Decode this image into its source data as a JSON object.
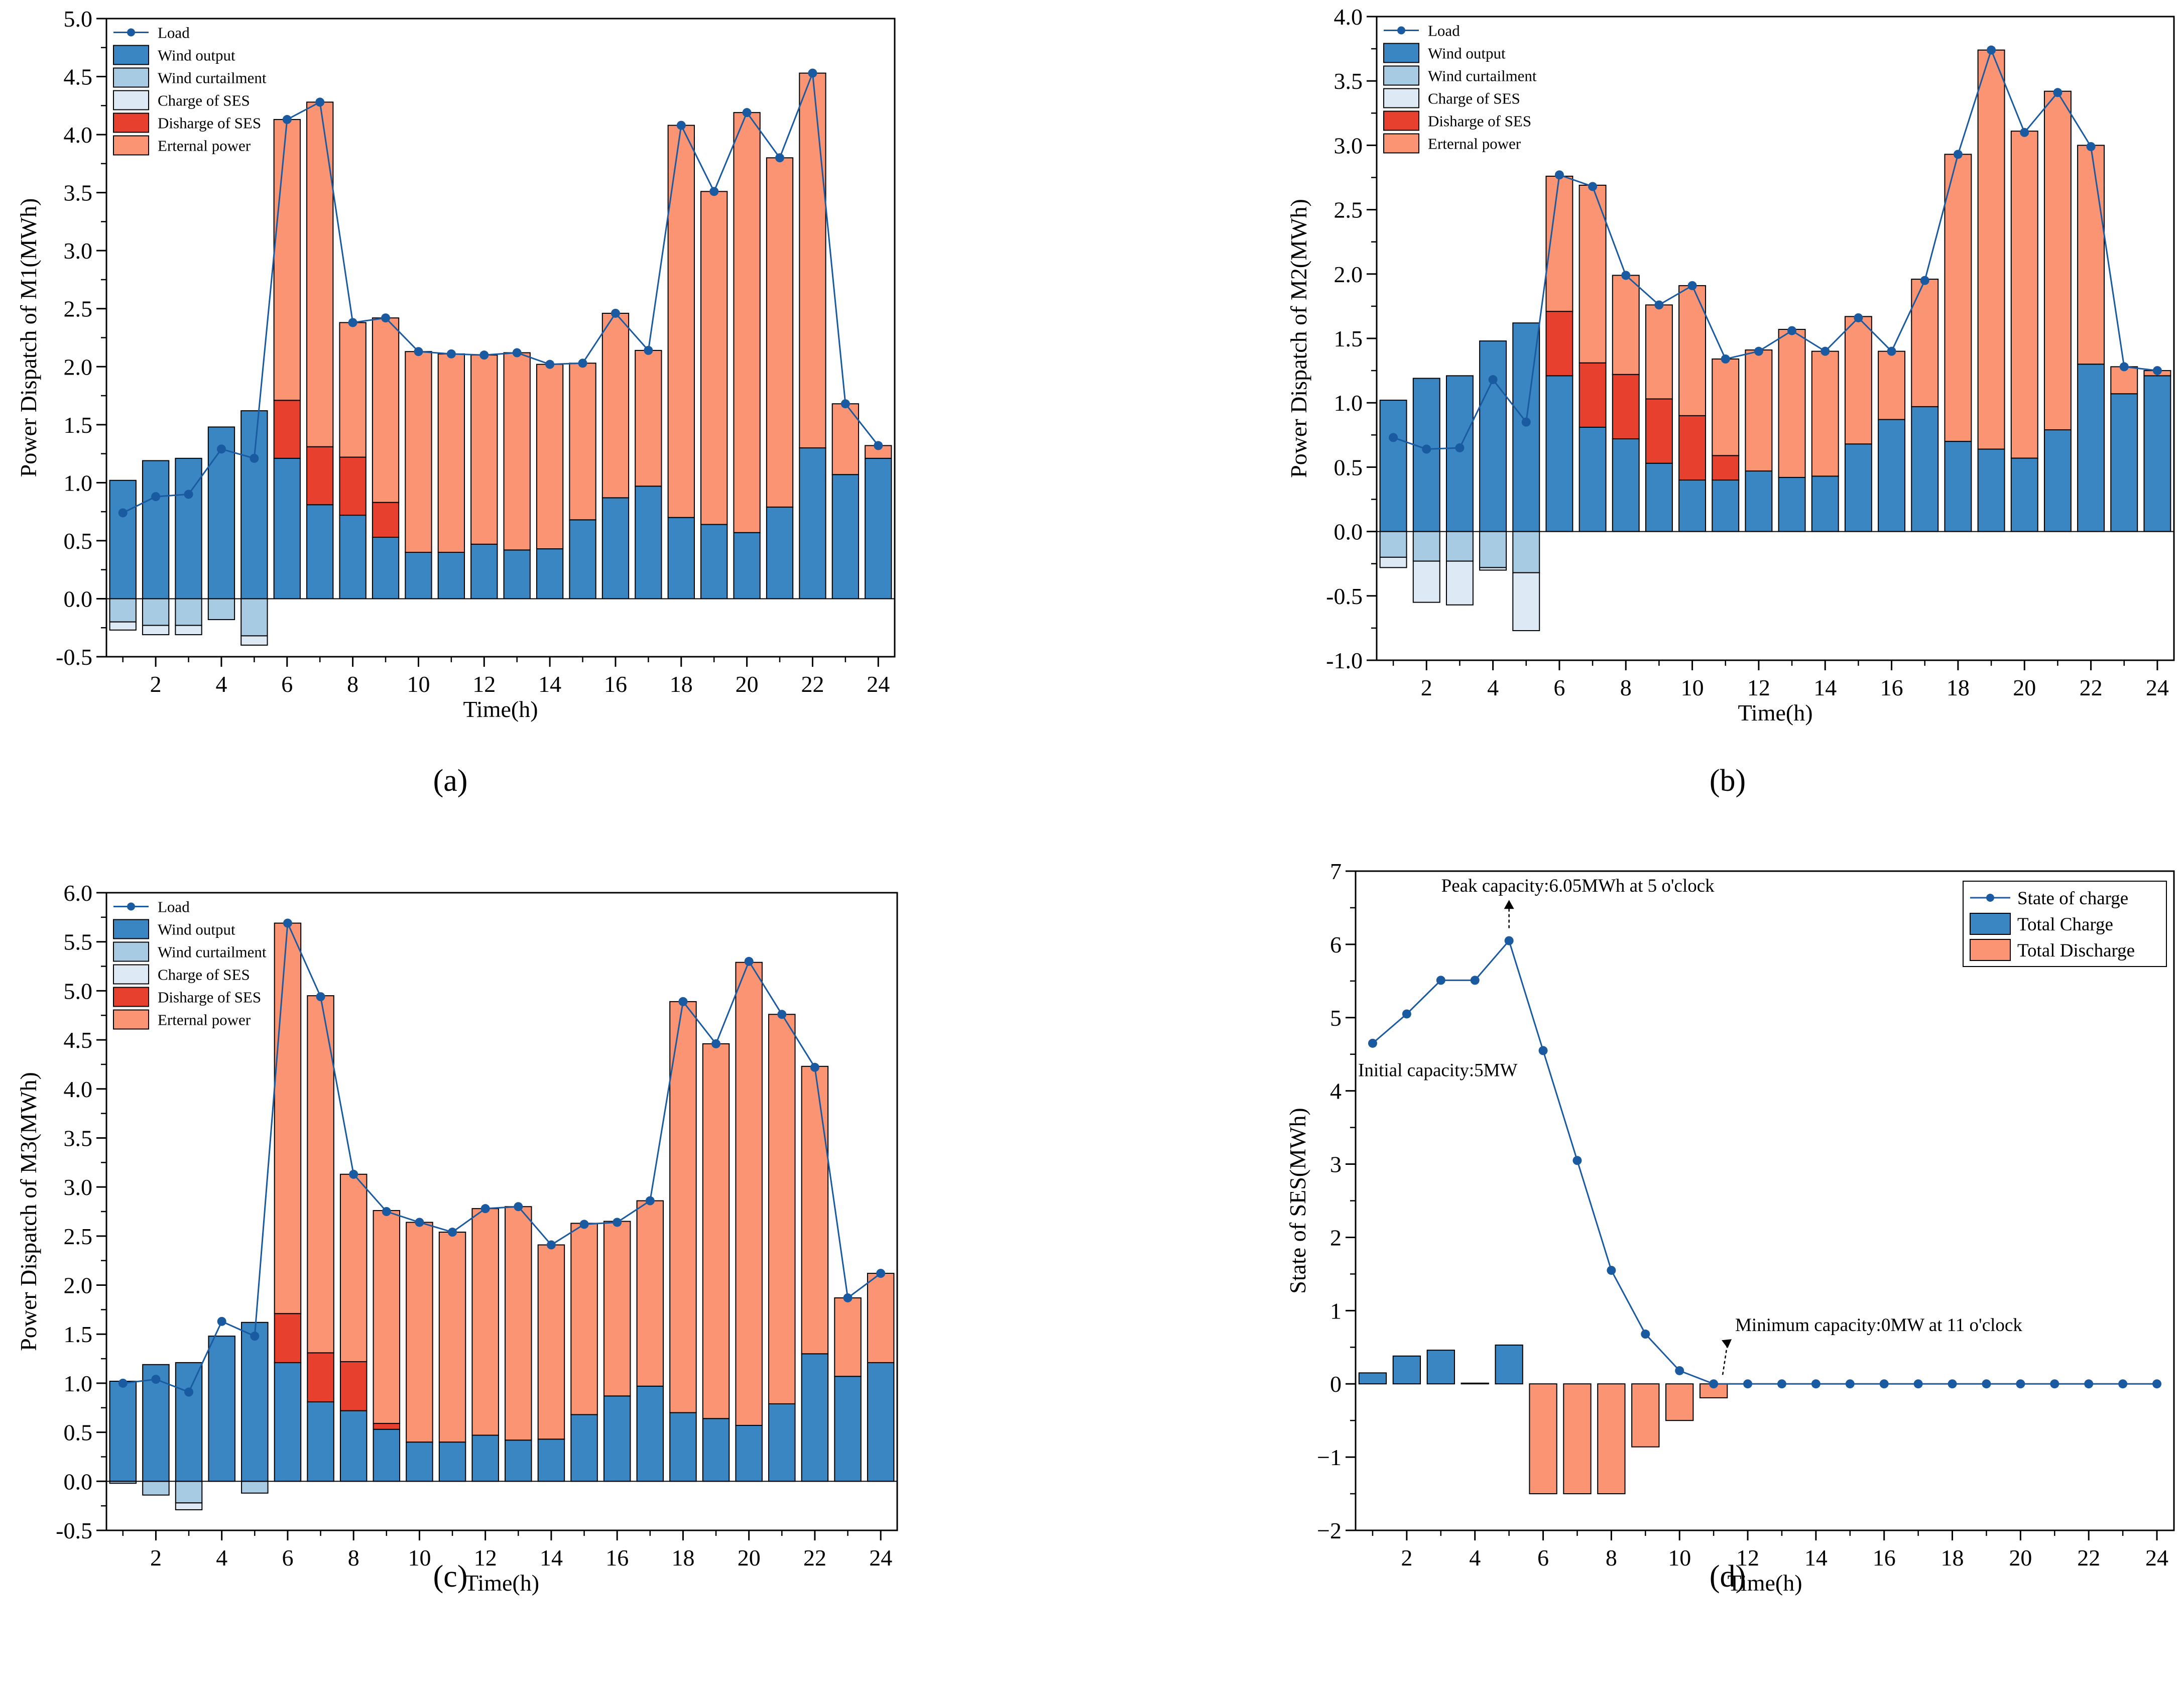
{
  "figure": {
    "panel_labels": [
      "(a)",
      "(b)",
      "(c)",
      "(d)"
    ],
    "colors": {
      "wind_output": "#3a86c2",
      "wind_curtailment": "#a6cbe3",
      "charge_ses": "#dde9f5",
      "discharge_ses": "#e8402e",
      "external_power": "#fb9472",
      "load_line": "#1a5aa0",
      "total_charge": "#3a86c2",
      "total_discharge": "#fb9472",
      "soc_line": "#1a5aa0"
    }
  },
  "chart_data": [
    {
      "id": "a",
      "type": "bar",
      "stacked": true,
      "xlabel": "Time(h)",
      "ylabel": "Power Dispatch of M1(MWh)",
      "ylim": [
        -0.5,
        5.0
      ],
      "ytick_step": 0.5,
      "ytick_decimals": 1,
      "xtick_labels": [
        "2",
        "4",
        "6",
        "8",
        "10",
        "12",
        "14",
        "16",
        "18",
        "20",
        "22",
        "24"
      ],
      "legend": [
        "Load",
        "Wind output",
        "Wind curtailment",
        "Charge of SES",
        "Disharge of SES",
        "Erternal power"
      ],
      "categories": [
        1,
        2,
        3,
        4,
        5,
        6,
        7,
        8,
        9,
        10,
        11,
        12,
        13,
        14,
        15,
        16,
        17,
        18,
        19,
        20,
        21,
        22,
        23,
        24
      ],
      "series": [
        {
          "name": "Wind output",
          "values": [
            1.02,
            1.19,
            1.21,
            1.48,
            1.62,
            1.21,
            0.81,
            0.72,
            0.53,
            0.4,
            0.4,
            0.47,
            0.42,
            0.43,
            0.68,
            0.87,
            0.97,
            0.7,
            0.64,
            0.57,
            0.79,
            1.3,
            1.07,
            1.21
          ]
        },
        {
          "name": "Disharge of SES",
          "values": [
            0,
            0,
            0,
            0,
            0,
            0.5,
            0.5,
            0.5,
            0.3,
            0,
            0,
            0,
            0,
            0,
            0,
            0,
            0,
            0,
            0,
            0,
            0,
            0,
            0,
            0
          ]
        },
        {
          "name": "Erternal power",
          "values": [
            0,
            0,
            0,
            0,
            0,
            2.42,
            2.97,
            1.16,
            1.59,
            1.73,
            1.71,
            1.63,
            1.7,
            1.59,
            1.35,
            1.59,
            1.17,
            3.38,
            2.87,
            3.62,
            3.01,
            3.23,
            0.61,
            0.11
          ]
        },
        {
          "name": "Wind curtailment",
          "values": [
            -0.2,
            -0.23,
            -0.23,
            -0.18,
            -0.32,
            0,
            0,
            0,
            0,
            0,
            0,
            0,
            0,
            0,
            0,
            0,
            0,
            0,
            0,
            0,
            0,
            0,
            0,
            0
          ]
        },
        {
          "name": "Charge of SES",
          "values": [
            -0.07,
            -0.08,
            -0.08,
            0,
            -0.08,
            0,
            0,
            0,
            0,
            0,
            0,
            0,
            0,
            0,
            0,
            0,
            0,
            0,
            0,
            0,
            0,
            0,
            0,
            0
          ]
        }
      ],
      "load": [
        0.74,
        0.88,
        0.9,
        1.29,
        1.21,
        4.13,
        4.28,
        2.38,
        2.42,
        2.13,
        2.11,
        2.1,
        2.12,
        2.02,
        2.03,
        2.46,
        2.14,
        4.08,
        3.51,
        4.19,
        3.8,
        4.53,
        1.68,
        1.32
      ]
    },
    {
      "id": "b",
      "type": "bar",
      "stacked": true,
      "xlabel": "Time(h)",
      "ylabel": "Power Dispatch of M2(MWh)",
      "ylim": [
        -1.0,
        4.0
      ],
      "ytick_step": 0.5,
      "ytick_decimals": 1,
      "xtick_labels": [
        "2",
        "4",
        "6",
        "8",
        "10",
        "12",
        "14",
        "16",
        "18",
        "20",
        "22",
        "24"
      ],
      "legend": [
        "Load",
        "Wind output",
        "Wind curtailment",
        "Charge of SES",
        "Disharge of SES",
        "Erternal power"
      ],
      "categories": [
        1,
        2,
        3,
        4,
        5,
        6,
        7,
        8,
        9,
        10,
        11,
        12,
        13,
        14,
        15,
        16,
        17,
        18,
        19,
        20,
        21,
        22,
        23,
        24
      ],
      "series": [
        {
          "name": "Wind output",
          "values": [
            1.02,
            1.19,
            1.21,
            1.48,
            1.62,
            1.21,
            0.81,
            0.72,
            0.53,
            0.4,
            0.4,
            0.47,
            0.42,
            0.43,
            0.68,
            0.87,
            0.97,
            0.7,
            0.64,
            0.57,
            0.79,
            1.3,
            1.07,
            1.21
          ]
        },
        {
          "name": "Disharge of SES",
          "values": [
            0,
            0,
            0,
            0,
            0,
            0.5,
            0.5,
            0.5,
            0.5,
            0.5,
            0.19,
            0,
            0,
            0,
            0,
            0,
            0,
            0,
            0,
            0,
            0,
            0,
            0,
            0
          ]
        },
        {
          "name": "Erternal power",
          "values": [
            0,
            0,
            0,
            0,
            0,
            1.05,
            1.38,
            0.77,
            0.73,
            1.01,
            0.75,
            0.94,
            1.15,
            0.97,
            0.99,
            0.53,
            0.99,
            2.23,
            3.1,
            2.54,
            2.63,
            1.7,
            0.21,
            0.04
          ]
        },
        {
          "name": "Wind curtailment",
          "values": [
            -0.2,
            -0.23,
            -0.23,
            -0.28,
            -0.32,
            0,
            0,
            0,
            0,
            0,
            0,
            0,
            0,
            0,
            0,
            0,
            0,
            0,
            0,
            0,
            0,
            0,
            0,
            0
          ]
        },
        {
          "name": "Charge of SES",
          "values": [
            -0.08,
            -0.32,
            -0.34,
            -0.02,
            -0.45,
            0,
            0,
            0,
            0,
            0,
            0,
            0,
            0,
            0,
            0,
            0,
            0,
            0,
            0,
            0,
            0,
            0,
            0,
            0
          ]
        }
      ],
      "load": [
        0.73,
        0.64,
        0.65,
        1.18,
        0.85,
        2.77,
        2.68,
        1.99,
        1.76,
        1.91,
        1.34,
        1.4,
        1.56,
        1.4,
        1.66,
        1.4,
        1.95,
        2.93,
        3.74,
        3.1,
        3.41,
        2.99,
        1.28,
        1.25
      ]
    },
    {
      "id": "c",
      "type": "bar",
      "stacked": true,
      "xlabel": "Time(h)",
      "ylabel": "Power Dispatch of M3(MWh)",
      "ylim": [
        -0.5,
        6.0
      ],
      "ytick_step": 0.5,
      "ytick_decimals": 1,
      "xtick_labels": [
        "2",
        "4",
        "6",
        "8",
        "10",
        "12",
        "14",
        "16",
        "18",
        "20",
        "22",
        "24"
      ],
      "legend": [
        "Load",
        "Wind output",
        "Wind curtailment",
        "Charge of SES",
        "Disharge of SES",
        "Erternal power"
      ],
      "categories": [
        1,
        2,
        3,
        4,
        5,
        6,
        7,
        8,
        9,
        10,
        11,
        12,
        13,
        14,
        15,
        16,
        17,
        18,
        19,
        20,
        21,
        22,
        23,
        24
      ],
      "series": [
        {
          "name": "Wind output",
          "values": [
            1.02,
            1.19,
            1.21,
            1.48,
            1.62,
            1.21,
            0.81,
            0.72,
            0.53,
            0.4,
            0.4,
            0.47,
            0.42,
            0.43,
            0.68,
            0.87,
            0.97,
            0.7,
            0.64,
            0.57,
            0.79,
            1.3,
            1.07,
            1.21
          ]
        },
        {
          "name": "Disharge of SES",
          "values": [
            0,
            0,
            0,
            0,
            0,
            0.5,
            0.5,
            0.5,
            0.06,
            0,
            0,
            0,
            0,
            0,
            0,
            0,
            0,
            0,
            0,
            0,
            0,
            0,
            0,
            0
          ]
        },
        {
          "name": "Erternal power",
          "values": [
            0,
            0,
            0,
            0,
            0,
            3.98,
            3.64,
            1.91,
            2.17,
            2.24,
            2.14,
            2.31,
            2.38,
            1.98,
            1.95,
            1.78,
            1.89,
            4.19,
            3.82,
            4.72,
            3.97,
            2.93,
            0.8,
            0.91
          ]
        },
        {
          "name": "Wind curtailment",
          "values": [
            -0.02,
            -0.14,
            -0.22,
            0,
            -0.12,
            0,
            0,
            0,
            0,
            0,
            0,
            0,
            0,
            0,
            0,
            0,
            0,
            0,
            0,
            0,
            0,
            0,
            0,
            0
          ]
        },
        {
          "name": "Charge of SES",
          "values": [
            0,
            0,
            -0.07,
            0,
            0,
            0,
            0,
            0,
            0,
            0,
            0,
            0,
            0,
            0,
            0,
            0,
            0,
            0,
            0,
            0,
            0,
            0,
            0,
            0
          ]
        }
      ],
      "load": [
        1.0,
        1.04,
        0.91,
        1.63,
        1.48,
        5.69,
        4.94,
        3.13,
        2.75,
        2.64,
        2.54,
        2.78,
        2.8,
        2.41,
        2.62,
        2.64,
        2.86,
        4.89,
        4.46,
        5.3,
        4.76,
        4.22,
        1.87,
        2.12
      ]
    },
    {
      "id": "d",
      "type": "bar",
      "stacked": false,
      "xlabel": "Time(h)",
      "ylabel": "State of SES(MWh)",
      "ylim": [
        -2,
        7
      ],
      "ytick_step": 1,
      "ytick_decimals": 0,
      "xtick_labels": [
        "2",
        "4",
        "6",
        "8",
        "10",
        "12",
        "14",
        "16",
        "18",
        "20",
        "22",
        "24"
      ],
      "legend": [
        "State of charge",
        "Total Charge",
        "Total Discharge"
      ],
      "categories": [
        1,
        2,
        3,
        4,
        5,
        6,
        7,
        8,
        9,
        10,
        11,
        12,
        13,
        14,
        15,
        16,
        17,
        18,
        19,
        20,
        21,
        22,
        23,
        24
      ],
      "total_charge": [
        0.15,
        0.38,
        0.46,
        0.01,
        0.53,
        0,
        0,
        0,
        0,
        0,
        0,
        0,
        0,
        0,
        0,
        0,
        0,
        0,
        0,
        0,
        0,
        0,
        0,
        0
      ],
      "total_discharge": [
        0,
        0,
        0,
        0,
        0,
        -1.5,
        -1.5,
        -1.5,
        -0.86,
        -0.5,
        -0.19,
        0,
        0,
        0,
        0,
        0,
        0,
        0,
        0,
        0,
        0,
        0,
        0,
        0
      ],
      "state_of_charge": [
        4.65,
        5.05,
        5.51,
        5.51,
        6.05,
        4.55,
        3.05,
        1.55,
        0.68,
        0.18,
        0,
        0,
        0,
        0,
        0,
        0,
        0,
        0,
        0,
        0,
        0,
        0,
        0,
        0
      ],
      "annotations": {
        "peak": "Peak capacity:6.05MWh at 5 o'clock",
        "initial": "Initial capacity:5MW",
        "minimum": "Minimum capacity:0MW at 11 o'clock"
      }
    }
  ]
}
